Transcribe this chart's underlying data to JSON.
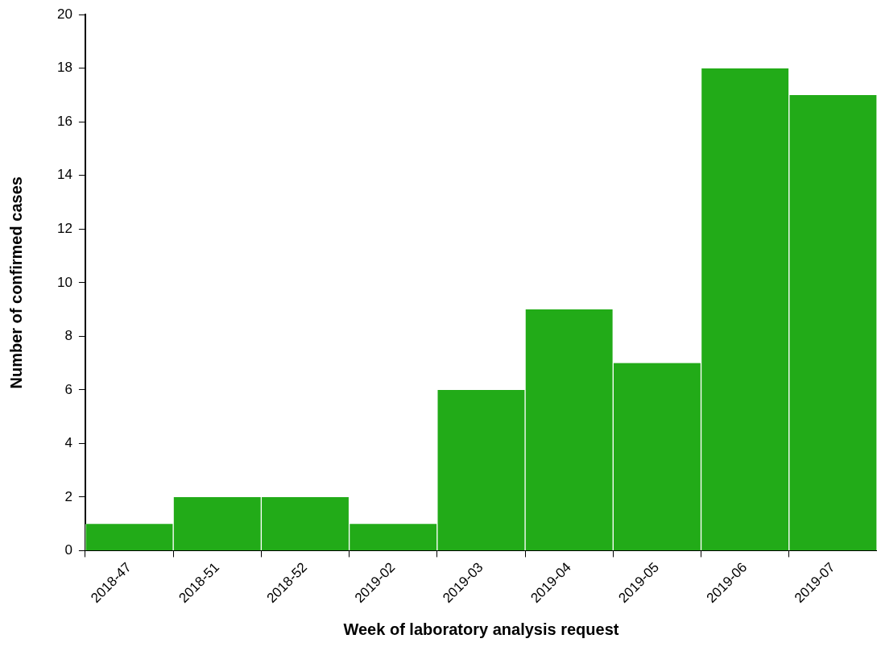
{
  "chart_data": {
    "type": "bar",
    "xlabel": "Week of laboratory analysis request",
    "ylabel": "Number of confirmed cases",
    "categories": [
      "2018-47",
      "2018-51",
      "2018-52",
      "2019-02",
      "2019-03",
      "2019-04",
      "2019-05",
      "2019-06",
      "2019-07"
    ],
    "values": [
      1,
      2,
      2,
      1,
      6,
      9,
      7,
      18,
      17
    ],
    "color": "#22ab18",
    "ylim": [
      0,
      20
    ],
    "yticks": [
      0,
      2,
      4,
      6,
      8,
      10,
      12,
      14,
      16,
      18,
      20
    ],
    "grid": false,
    "legend": false
  }
}
